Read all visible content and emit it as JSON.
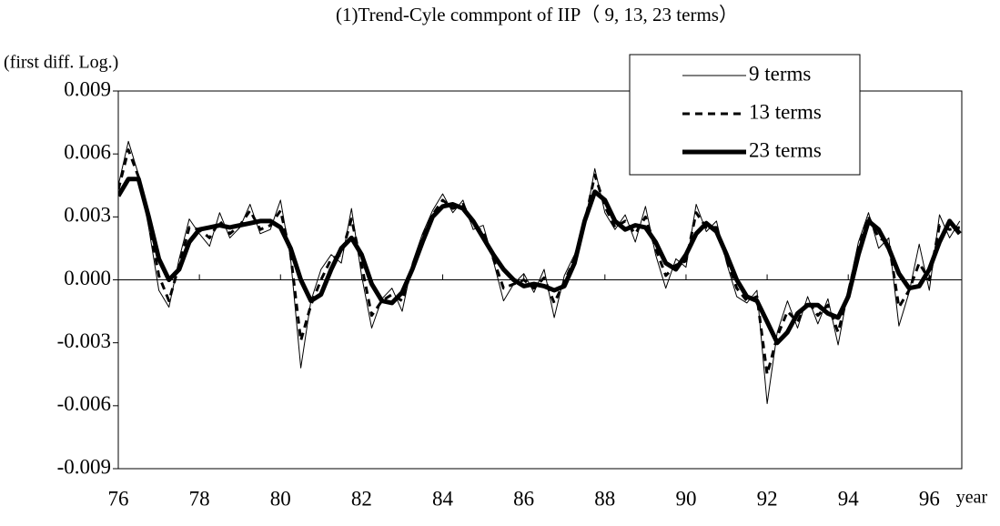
{
  "chart_data": {
    "type": "line",
    "title": "(1)Trend-Cyle commpont of IIP（ 9, 13, 23 terms）",
    "y_label": "(first diff. Log.)",
    "x_label": "year",
    "x": [
      76,
      76.25,
      76.5,
      76.75,
      77,
      77.25,
      77.5,
      77.75,
      78,
      78.25,
      78.5,
      78.75,
      79,
      79.25,
      79.5,
      79.75,
      80,
      80.25,
      80.5,
      80.75,
      81,
      81.25,
      81.5,
      81.75,
      82,
      82.25,
      82.5,
      82.75,
      83,
      83.25,
      83.5,
      83.75,
      84,
      84.25,
      84.5,
      84.75,
      85,
      85.25,
      85.5,
      85.75,
      86,
      86.25,
      86.5,
      86.75,
      87,
      87.25,
      87.5,
      87.75,
      88,
      88.25,
      88.5,
      88.75,
      89,
      89.25,
      89.5,
      89.75,
      90,
      90.25,
      90.5,
      90.75,
      91,
      91.25,
      91.5,
      91.75,
      92,
      92.25,
      92.5,
      92.75,
      93,
      93.25,
      93.5,
      93.75,
      94,
      94.25,
      94.5,
      94.75,
      95,
      95.25,
      95.5,
      95.75,
      96,
      96.25,
      96.5,
      96.75
    ],
    "series": [
      {
        "name": "9 terms",
        "color": "#000000",
        "line_width": 1,
        "dash": false,
        "values": [
          0.0045,
          0.0066,
          0.005,
          0.0025,
          -0.0005,
          -0.0013,
          0.001,
          0.0029,
          0.0022,
          0.0016,
          0.0032,
          0.002,
          0.0025,
          0.0036,
          0.0022,
          0.0024,
          0.0038,
          0.001,
          -0.0042,
          -0.001,
          0.0005,
          0.0012,
          0.0008,
          0.0034,
          0.0002,
          -0.0023,
          -0.0009,
          -0.0004,
          -0.0015,
          0.0008,
          0.0022,
          0.0033,
          0.0041,
          0.0032,
          0.0038,
          0.0024,
          0.0026,
          0.0009,
          -0.001,
          -0.0002,
          0.0003,
          -0.0006,
          0.0005,
          -0.0018,
          0.0002,
          0.0012,
          0.0026,
          0.0053,
          0.0032,
          0.0024,
          0.0031,
          0.0018,
          0.0035,
          0.0012,
          -0.0004,
          0.001,
          0.0006,
          0.0036,
          0.0023,
          0.0028,
          0.0008,
          -0.0008,
          -0.0011,
          -0.0005,
          -0.0059,
          -0.0025,
          -0.001,
          -0.0023,
          -0.0008,
          -0.0021,
          -0.0009,
          -0.0031,
          -0.0005,
          0.0018,
          0.0032,
          0.0015,
          0.002,
          -0.0022,
          -0.0006,
          0.0017,
          -0.0005,
          0.0031,
          0.002,
          0.0028
        ]
      },
      {
        "name": "13 terms",
        "color": "#000000",
        "line_width": 3,
        "dash": true,
        "values": [
          0.0043,
          0.0062,
          0.0049,
          0.0028,
          0.0002,
          -0.001,
          0.0007,
          0.0025,
          0.0024,
          0.002,
          0.0028,
          0.0022,
          0.0026,
          0.0033,
          0.0024,
          0.0026,
          0.0033,
          0.0012,
          -0.0029,
          -0.0012,
          0,
          0.001,
          0.0012,
          0.0029,
          0.0007,
          -0.0017,
          -0.001,
          -0.0007,
          -0.001,
          0.0006,
          0.002,
          0.0031,
          0.0038,
          0.0034,
          0.0036,
          0.0026,
          0.0023,
          0.001,
          -0.0004,
          -0.0002,
          0,
          -0.0004,
          0.0001,
          -0.0011,
          -0.0001,
          0.001,
          0.0027,
          0.005,
          0.0035,
          0.0025,
          0.0028,
          0.0022,
          0.003,
          0.0015,
          0.0002,
          0.0007,
          0.0009,
          0.0032,
          0.0025,
          0.0025,
          0.001,
          -0.0004,
          -0.001,
          -0.0008,
          -0.0045,
          -0.0027,
          -0.0015,
          -0.002,
          -0.001,
          -0.0017,
          -0.0012,
          -0.0025,
          -0.0006,
          0.0015,
          0.003,
          0.002,
          0.0018,
          -0.0013,
          -0.0005,
          0.0008,
          0,
          0.0026,
          0.0024,
          0.0025
        ]
      },
      {
        "name": "23 terms",
        "color": "#000000",
        "line_width": 5,
        "dash": false,
        "values": [
          0.004,
          0.0048,
          0.0048,
          0.003,
          0.001,
          0,
          0.0005,
          0.0018,
          0.0024,
          0.0025,
          0.0026,
          0.0025,
          0.0026,
          0.0027,
          0.0028,
          0.0028,
          0.0025,
          0.0015,
          0,
          -0.001,
          -0.0007,
          0.0005,
          0.0015,
          0.002,
          0.0012,
          -0.0002,
          -0.001,
          -0.0011,
          -0.0006,
          0.0005,
          0.0018,
          0.003,
          0.0035,
          0.0036,
          0.0034,
          0.0028,
          0.002,
          0.0012,
          0.0005,
          0,
          -0.0003,
          -0.0002,
          -0.0003,
          -0.0005,
          -0.0003,
          0.0008,
          0.0028,
          0.0042,
          0.0038,
          0.0028,
          0.0024,
          0.0026,
          0.0025,
          0.0018,
          0.0008,
          0.0005,
          0.0012,
          0.0022,
          0.0027,
          0.0023,
          0.0012,
          0,
          -0.0008,
          -0.001,
          -0.002,
          -0.003,
          -0.0025,
          -0.0016,
          -0.0012,
          -0.0012,
          -0.0016,
          -0.0018,
          -0.0008,
          0.0012,
          0.0028,
          0.0024,
          0.0015,
          0.0003,
          -0.0004,
          -0.0003,
          0.0005,
          0.0018,
          0.0028,
          0.0022
        ]
      }
    ],
    "xlim": [
      76,
      96.8
    ],
    "xticks": [
      76,
      78,
      80,
      82,
      84,
      86,
      88,
      90,
      92,
      94,
      96
    ],
    "ylim": [
      -0.009,
      0.009
    ],
    "yticks": [
      0.009,
      0.006,
      0.003,
      {
        "value": 0,
        "label": "0.000"
      },
      -0.003,
      -0.006,
      -0.009
    ],
    "grid": false,
    "legend": "upper right"
  }
}
